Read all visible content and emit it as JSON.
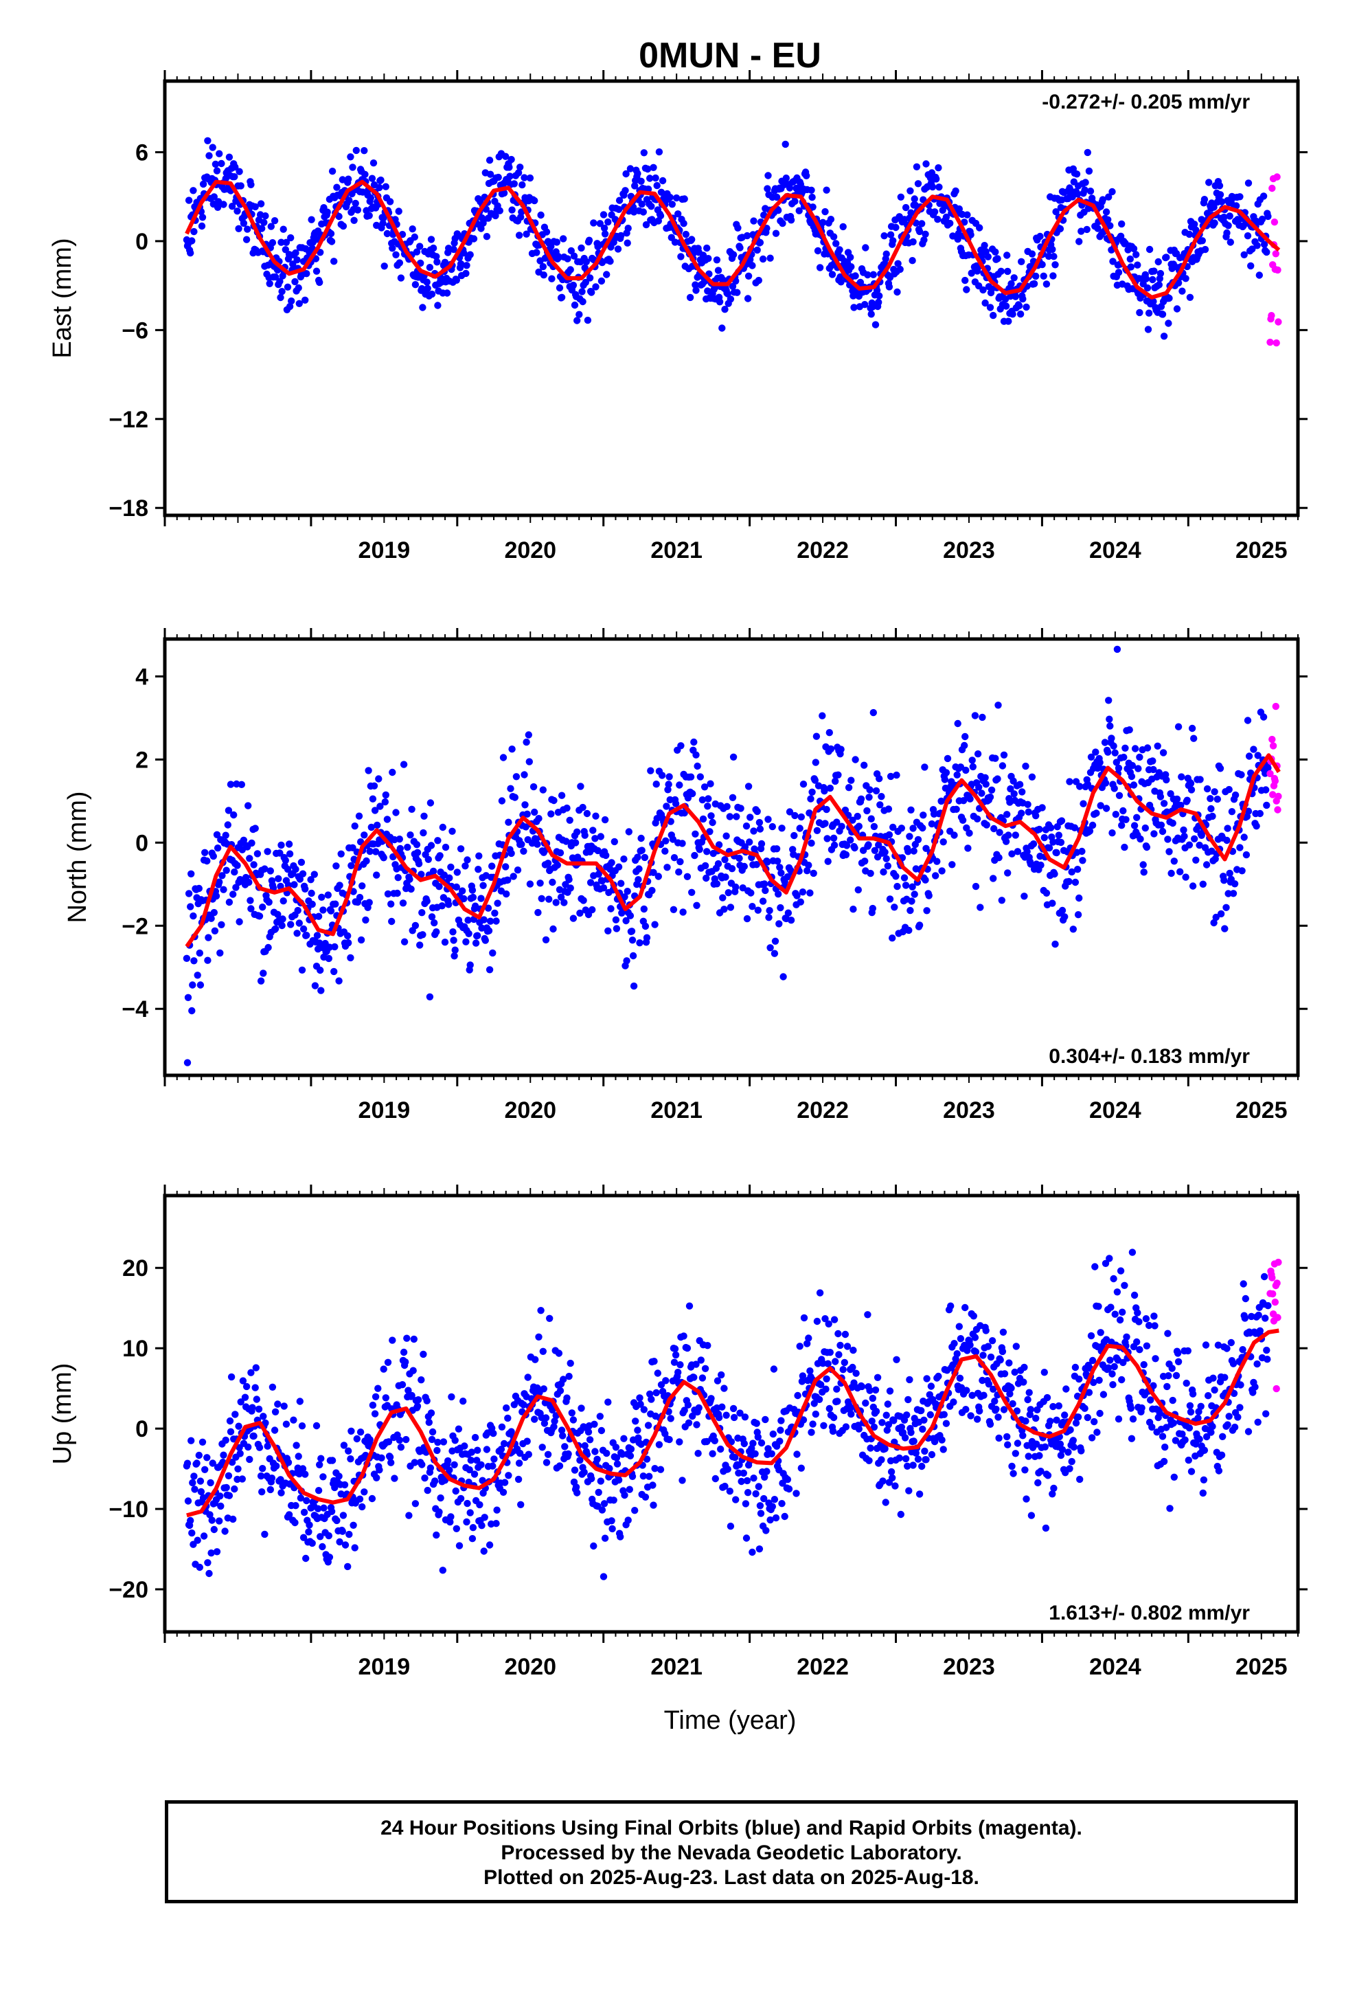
{
  "chart_data": {
    "title": "0MUN - EU",
    "type": "scatter",
    "x_ticks": [
      "2019",
      "2020",
      "2021",
      "2022",
      "2023",
      "2024",
      "2025"
    ],
    "xlim": [
      2018.0,
      2025.75
    ],
    "xlabel": "Time (year)",
    "point_colors": {
      "final": "#0000ff",
      "rapid": "#ff00ff",
      "model": "#ff0000"
    },
    "panels": [
      {
        "name": "east",
        "ylabel": "East (mm)",
        "ylim": [
          -18.5,
          10.8
        ],
        "yticks": [
          6,
          0,
          -6,
          -12,
          -18
        ],
        "ytick_labels": [
          "6",
          "0",
          "−6",
          "−12",
          "−18"
        ],
        "rate_text": "-0.272+/- 0.205 mm/yr",
        "rate_position": "top-right",
        "model": {
          "x": [
            2018.15,
            2018.25,
            2018.35,
            2018.45,
            2018.55,
            2018.65,
            2018.75,
            2018.85,
            2018.95,
            2019.05,
            2019.15,
            2019.25,
            2019.35,
            2019.45,
            2019.55,
            2019.65,
            2019.75,
            2019.85,
            2019.95,
            2020.05,
            2020.15,
            2020.25,
            2020.35,
            2020.45,
            2020.55,
            2020.65,
            2020.75,
            2020.85,
            2020.95,
            2021.05,
            2021.15,
            2021.25,
            2021.35,
            2021.45,
            2021.55,
            2021.65,
            2021.75,
            2021.85,
            2021.95,
            2022.05,
            2022.15,
            2022.25,
            2022.35,
            2022.45,
            2022.55,
            2022.65,
            2022.75,
            2022.85,
            2022.95,
            2023.05,
            2023.15,
            2023.25,
            2023.35,
            2023.45,
            2023.55,
            2023.65,
            2023.75,
            2023.85,
            2023.95,
            2024.05,
            2024.15,
            2024.25,
            2024.35,
            2024.45,
            2024.55,
            2024.65,
            2024.75,
            2024.85,
            2024.95,
            2025.05,
            2025.15,
            2025.25,
            2025.35,
            2025.45,
            2025.55,
            2025.62
          ],
          "y": [
            0.5,
            2.6,
            4.0,
            3.9,
            2.3,
            0.2,
            -1.4,
            -2.2,
            -1.9,
            -0.4,
            1.6,
            3.4,
            4.0,
            3.2,
            1.3,
            -0.7,
            -2.0,
            -2.4,
            -1.7,
            0.0,
            2.0,
            3.4,
            3.6,
            2.4,
            0.4,
            -1.4,
            -2.5,
            -2.5,
            -1.5,
            0.3,
            2.1,
            3.3,
            3.2,
            1.8,
            -0.2,
            -1.9,
            -2.9,
            -2.9,
            -1.6,
            0.3,
            2.1,
            3.1,
            3.0,
            1.4,
            -0.6,
            -2.3,
            -3.2,
            -3.1,
            -1.7,
            0.3,
            2.0,
            3.0,
            2.8,
            1.0,
            -1.0,
            -2.7,
            -3.5,
            -3.3,
            -1.8,
            0.3,
            2.0,
            2.8,
            2.4,
            0.6,
            -1.5,
            -3.1,
            -3.8,
            -3.5,
            -2.0,
            0.1,
            1.6,
            2.3,
            2.0,
            1.0,
            0.0,
            -0.6
          ]
        }
      },
      {
        "name": "north",
        "ylabel": "North (mm)",
        "ylim": [
          -5.6,
          4.9
        ],
        "yticks": [
          4,
          2,
          0,
          -2,
          -4
        ],
        "ytick_labels": [
          "4",
          "2",
          "0",
          "−2",
          "−4"
        ],
        "rate_text": "0.304+/- 0.183 mm/yr",
        "rate_position": "bottom-right",
        "model": {
          "x": [
            2018.15,
            2018.25,
            2018.35,
            2018.45,
            2018.55,
            2018.65,
            2018.75,
            2018.85,
            2018.95,
            2019.05,
            2019.15,
            2019.25,
            2019.35,
            2019.45,
            2019.55,
            2019.65,
            2019.75,
            2019.85,
            2019.95,
            2020.05,
            2020.15,
            2020.25,
            2020.35,
            2020.45,
            2020.55,
            2020.65,
            2020.75,
            2020.85,
            2020.95,
            2021.05,
            2021.15,
            2021.25,
            2021.35,
            2021.45,
            2021.55,
            2021.65,
            2021.75,
            2021.85,
            2021.95,
            2022.05,
            2022.15,
            2022.25,
            2022.35,
            2022.45,
            2022.55,
            2022.65,
            2022.75,
            2022.85,
            2022.95,
            2023.05,
            2023.15,
            2023.25,
            2023.35,
            2023.45,
            2023.55,
            2023.65,
            2023.75,
            2023.85,
            2023.95,
            2024.05,
            2024.15,
            2024.25,
            2024.35,
            2024.45,
            2024.55,
            2024.65,
            2024.75,
            2024.85,
            2024.95,
            2025.05,
            2025.15,
            2025.25,
            2025.35,
            2025.45,
            2025.55,
            2025.62
          ],
          "y": [
            -2.5,
            -2.0,
            -0.8,
            -0.1,
            -0.5,
            -1.1,
            -1.2,
            -1.1,
            -1.5,
            -2.1,
            -2.2,
            -1.3,
            -0.1,
            0.3,
            -0.1,
            -0.6,
            -0.9,
            -0.8,
            -1.1,
            -1.6,
            -1.8,
            -1.0,
            0.1,
            0.6,
            0.3,
            -0.3,
            -0.5,
            -0.5,
            -0.5,
            -0.9,
            -1.6,
            -1.3,
            -0.2,
            0.7,
            0.9,
            0.5,
            -0.1,
            -0.3,
            -0.2,
            -0.3,
            -0.9,
            -1.2,
            -0.4,
            0.8,
            1.1,
            0.6,
            0.1,
            0.1,
            0.0,
            -0.6,
            -0.9,
            -0.2,
            1.0,
            1.5,
            1.1,
            0.6,
            0.4,
            0.5,
            0.2,
            -0.4,
            -0.6,
            0.1,
            1.2,
            1.8,
            1.5,
            1.0,
            0.7,
            0.6,
            0.8,
            0.7,
            0.1,
            -0.4,
            0.4,
            1.6,
            2.1,
            1.7
          ]
        }
      },
      {
        "name": "up",
        "ylabel": "Up (mm)",
        "ylim": [
          -25.3,
          29
        ],
        "yticks": [
          20,
          10,
          0,
          -10,
          -20
        ],
        "ytick_labels": [
          "20",
          "10",
          "0",
          "−10",
          "−20"
        ],
        "rate_text": "1.613+/- 0.802 mm/yr",
        "rate_position": "bottom-right",
        "model": {
          "x": [
            2018.15,
            2018.25,
            2018.35,
            2018.45,
            2018.55,
            2018.65,
            2018.75,
            2018.85,
            2018.95,
            2019.05,
            2019.15,
            2019.25,
            2019.35,
            2019.45,
            2019.55,
            2019.65,
            2019.75,
            2019.85,
            2019.95,
            2020.05,
            2020.15,
            2020.25,
            2020.35,
            2020.45,
            2020.55,
            2020.65,
            2020.75,
            2020.85,
            2020.95,
            2021.05,
            2021.15,
            2021.25,
            2021.35,
            2021.45,
            2021.55,
            2021.65,
            2021.75,
            2021.85,
            2021.95,
            2022.05,
            2022.15,
            2022.25,
            2022.35,
            2022.45,
            2022.55,
            2022.65,
            2022.75,
            2022.85,
            2022.95,
            2023.05,
            2023.15,
            2023.25,
            2023.35,
            2023.45,
            2023.55,
            2023.65,
            2023.75,
            2023.85,
            2023.95,
            2024.05,
            2024.15,
            2024.25,
            2024.35,
            2024.45,
            2024.55,
            2024.65,
            2024.75,
            2024.85,
            2024.95,
            2025.05,
            2025.15,
            2025.25,
            2025.35,
            2025.45,
            2025.55,
            2025.62
          ],
          "y": [
            -10.8,
            -10.3,
            -7.5,
            -3.2,
            0.2,
            0.7,
            -2.2,
            -5.8,
            -8.0,
            -8.8,
            -9.2,
            -8.8,
            -5.8,
            -1.2,
            2.0,
            2.5,
            -0.4,
            -4.2,
            -6.3,
            -7.1,
            -7.4,
            -6.3,
            -3.1,
            1.3,
            4.0,
            3.5,
            0.3,
            -3.2,
            -5.0,
            -5.6,
            -5.8,
            -4.2,
            -0.8,
            3.6,
            5.8,
            4.6,
            1.2,
            -2.0,
            -3.5,
            -4.2,
            -4.3,
            -2.4,
            1.8,
            6.0,
            7.5,
            5.7,
            1.9,
            -0.9,
            -2.0,
            -2.5,
            -2.3,
            0.2,
            4.8,
            8.6,
            9.0,
            6.7,
            3.3,
            0.5,
            -0.5,
            -1.0,
            -0.3,
            3.0,
            7.3,
            10.3,
            10.1,
            7.8,
            4.5,
            2.0,
            1.2,
            0.6,
            1.0,
            3.2,
            7.2,
            10.7,
            12.0,
            12.2
          ]
        }
      }
    ]
  },
  "footer": {
    "line1": "24 Hour Positions Using Final Orbits (blue) and Rapid Orbits (magenta).",
    "line2": "Processed by the Nevada Geodetic Laboratory.",
    "line3": "Plotted on 2025-Aug-23. Last data on 2025-Aug-18."
  }
}
